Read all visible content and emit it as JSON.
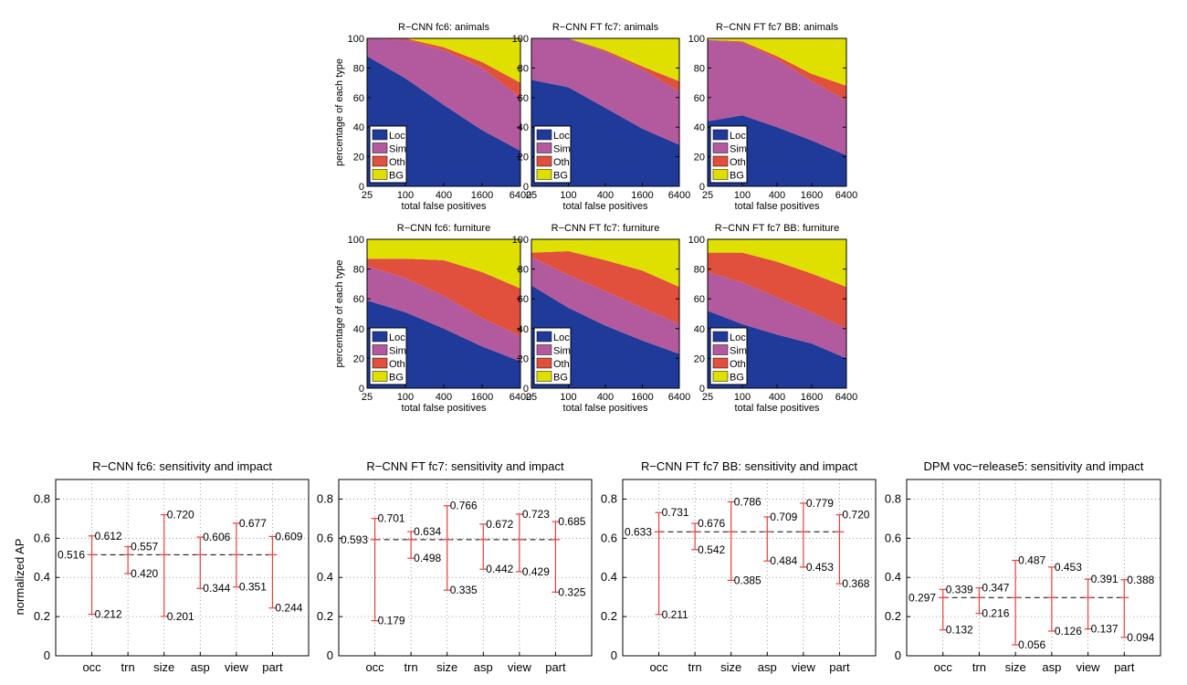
{
  "chart_data": [
    {
      "type": "area",
      "title": "R−CNN fc6: animals",
      "xlabel": "total false positives",
      "ylabel": "percentage of each type",
      "categories": [
        "25",
        "100",
        "400",
        "1600",
        "6400"
      ],
      "ylim": [
        0,
        100
      ],
      "yticks": [
        "0",
        "20",
        "40",
        "60",
        "80",
        "100"
      ],
      "series": [
        {
          "name": "Loc",
          "color": "#203a9a",
          "values": [
            88,
            73,
            55,
            38,
            24
          ]
        },
        {
          "name": "Sim",
          "color": "#b35a9f",
          "values": [
            12,
            26,
            37,
            42,
            36
          ]
        },
        {
          "name": "Oth",
          "color": "#e0503d",
          "values": [
            0,
            1,
            2,
            4,
            10
          ]
        },
        {
          "name": "BG",
          "color": "#e0e000",
          "values": [
            0,
            0,
            6,
            16,
            30
          ]
        }
      ]
    },
    {
      "type": "area",
      "title": "R−CNN FT fc7: animals",
      "xlabel": "total false positives",
      "ylabel": "",
      "categories": [
        "25",
        "100",
        "400",
        "1600",
        "6400"
      ],
      "ylim": [
        0,
        100
      ],
      "yticks": [
        "0",
        "20",
        "40",
        "60",
        "80",
        "100"
      ],
      "series": [
        {
          "name": "Loc",
          "color": "#203a9a",
          "values": [
            72,
            67,
            53,
            39,
            28
          ]
        },
        {
          "name": "Sim",
          "color": "#b35a9f",
          "values": [
            28,
            33,
            38,
            40,
            36
          ]
        },
        {
          "name": "Oth",
          "color": "#e0503d",
          "values": [
            0,
            0,
            1,
            2,
            7
          ]
        },
        {
          "name": "BG",
          "color": "#e0e000",
          "values": [
            0,
            0,
            8,
            19,
            29
          ]
        }
      ]
    },
    {
      "type": "area",
      "title": "R−CNN FT fc7 BB: animals",
      "xlabel": "total false positives",
      "ylabel": "",
      "categories": [
        "25",
        "100",
        "400",
        "1600",
        "6400"
      ],
      "ylim": [
        0,
        100
      ],
      "yticks": [
        "0",
        "20",
        "40",
        "60",
        "80",
        "100"
      ],
      "series": [
        {
          "name": "Loc",
          "color": "#203a9a",
          "values": [
            44,
            48,
            40,
            31,
            21
          ]
        },
        {
          "name": "Sim",
          "color": "#b35a9f",
          "values": [
            55,
            49,
            46,
            40,
            37
          ]
        },
        {
          "name": "Oth",
          "color": "#e0503d",
          "values": [
            0,
            1,
            2,
            5,
            10
          ]
        },
        {
          "name": "BG",
          "color": "#e0e000",
          "values": [
            1,
            2,
            12,
            24,
            32
          ]
        }
      ]
    },
    {
      "type": "area",
      "title": "R−CNN fc6: furniture",
      "xlabel": "total false positives",
      "ylabel": "percentage of each type",
      "categories": [
        "25",
        "100",
        "400",
        "1600",
        "6400"
      ],
      "ylim": [
        0,
        100
      ],
      "yticks": [
        "0",
        "20",
        "40",
        "60",
        "80",
        "100"
      ],
      "series": [
        {
          "name": "Loc",
          "color": "#203a9a",
          "values": [
            59,
            51,
            40,
            28,
            18
          ]
        },
        {
          "name": "Sim",
          "color": "#b35a9f",
          "values": [
            23,
            23,
            22,
            19,
            17
          ]
        },
        {
          "name": "Oth",
          "color": "#e0503d",
          "values": [
            5,
            13,
            24,
            31,
            32
          ]
        },
        {
          "name": "BG",
          "color": "#e0e000",
          "values": [
            13,
            13,
            14,
            22,
            33
          ]
        }
      ]
    },
    {
      "type": "area",
      "title": "R−CNN FT fc7: furniture",
      "xlabel": "total false positives",
      "ylabel": "",
      "categories": [
        "25",
        "100",
        "400",
        "1600",
        "6400"
      ],
      "ylim": [
        0,
        100
      ],
      "yticks": [
        "0",
        "20",
        "40",
        "60",
        "80",
        "100"
      ],
      "series": [
        {
          "name": "Loc",
          "color": "#203a9a",
          "values": [
            69,
            54,
            42,
            32,
            23
          ]
        },
        {
          "name": "Sim",
          "color": "#b35a9f",
          "values": [
            19,
            22,
            23,
            22,
            20
          ]
        },
        {
          "name": "Oth",
          "color": "#e0503d",
          "values": [
            3,
            16,
            21,
            25,
            25
          ]
        },
        {
          "name": "BG",
          "color": "#e0e000",
          "values": [
            9,
            8,
            14,
            21,
            32
          ]
        }
      ]
    },
    {
      "type": "area",
      "title": "R−CNN FT fc7 BB: furniture",
      "xlabel": "total false positives",
      "ylabel": "",
      "categories": [
        "25",
        "100",
        "400",
        "1600",
        "6400"
      ],
      "ylim": [
        0,
        100
      ],
      "yticks": [
        "0",
        "20",
        "40",
        "60",
        "80",
        "100"
      ],
      "series": [
        {
          "name": "Loc",
          "color": "#203a9a",
          "values": [
            52,
            43,
            36,
            30,
            20
          ]
        },
        {
          "name": "Sim",
          "color": "#b35a9f",
          "values": [
            26,
            28,
            25,
            21,
            20
          ]
        },
        {
          "name": "Oth",
          "color": "#e0503d",
          "values": [
            13,
            20,
            24,
            26,
            28
          ]
        },
        {
          "name": "BG",
          "color": "#e0e000",
          "values": [
            9,
            9,
            15,
            23,
            32
          ]
        }
      ]
    },
    {
      "type": "errorbar",
      "title": "R−CNN fc6: sensitivity and impact",
      "ylabel": "normalized AP",
      "categories": [
        "occ",
        "trn",
        "size",
        "asp",
        "view",
        "part"
      ],
      "ylim": [
        0,
        0.9
      ],
      "yticks": [
        "0",
        "0.2",
        "0.4",
        "0.6",
        "0.8"
      ],
      "baseline": 0.516,
      "baseline_label": "0.516",
      "high": [
        0.612,
        0.557,
        0.72,
        0.606,
        0.677,
        0.609
      ],
      "high_labels": [
        "0.612",
        "0.557",
        "0.720",
        "0.606",
        "0.677",
        "0.609"
      ],
      "low": [
        0.212,
        0.42,
        0.201,
        0.344,
        0.351,
        0.244
      ],
      "low_labels": [
        "0.212",
        "0.420",
        "0.201",
        "0.344",
        "0.351",
        "0.244"
      ]
    },
    {
      "type": "errorbar",
      "title": "R−CNN FT fc7: sensitivity and impact",
      "ylabel": "",
      "categories": [
        "occ",
        "trn",
        "size",
        "asp",
        "view",
        "part"
      ],
      "ylim": [
        0,
        0.9
      ],
      "yticks": [
        "0",
        "0.2",
        "0.4",
        "0.6",
        "0.8"
      ],
      "baseline": 0.593,
      "baseline_label": "0.593",
      "high": [
        0.701,
        0.634,
        0.766,
        0.672,
        0.723,
        0.685
      ],
      "high_labels": [
        "0.701",
        "0.634",
        "0.766",
        "0.672",
        "0.723",
        "0.685"
      ],
      "low": [
        0.179,
        0.498,
        0.335,
        0.442,
        0.429,
        0.325
      ],
      "low_labels": [
        "0.179",
        "0.498",
        "0.335",
        "0.442",
        "0.429",
        "0.325"
      ]
    },
    {
      "type": "errorbar",
      "title": "R−CNN FT fc7 BB: sensitivity and impact",
      "ylabel": "",
      "categories": [
        "occ",
        "trn",
        "size",
        "asp",
        "view",
        "part"
      ],
      "ylim": [
        0,
        0.9
      ],
      "yticks": [
        "0",
        "0.2",
        "0.4",
        "0.6",
        "0.8"
      ],
      "baseline": 0.633,
      "baseline_label": "0.633",
      "high": [
        0.731,
        0.676,
        0.786,
        0.709,
        0.779,
        0.72
      ],
      "high_labels": [
        "0.731",
        "0.676",
        "0.786",
        "0.709",
        "0.779",
        "0.720"
      ],
      "low": [
        0.211,
        0.542,
        0.385,
        0.484,
        0.453,
        0.368
      ],
      "low_labels": [
        "0.211",
        "0.542",
        "0.385",
        "0.484",
        "0.453",
        "0.368"
      ]
    },
    {
      "type": "errorbar",
      "title": "DPM voc−release5: sensitivity and impact",
      "ylabel": "",
      "categories": [
        "occ",
        "trn",
        "size",
        "asp",
        "view",
        "part"
      ],
      "ylim": [
        0,
        0.9
      ],
      "yticks": [
        "0",
        "0.2",
        "0.4",
        "0.6",
        "0.8"
      ],
      "baseline": 0.297,
      "baseline_label": "0.297",
      "high": [
        0.339,
        0.347,
        0.487,
        0.453,
        0.391,
        0.388
      ],
      "high_labels": [
        "0.339",
        "0.347",
        "0.487",
        "0.453",
        "0.391",
        "0.388"
      ],
      "low": [
        0.132,
        0.216,
        0.056,
        0.126,
        0.137,
        0.094
      ],
      "low_labels": [
        "0.132",
        "0.216",
        "0.056",
        "0.126",
        "0.137",
        "0.094"
      ]
    }
  ]
}
